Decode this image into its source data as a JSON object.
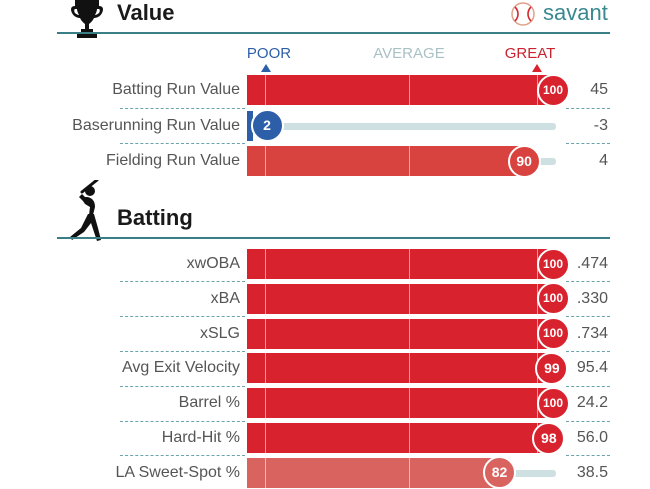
{
  "value_section": {
    "title": "Value",
    "brand": "savant",
    "scale": {
      "poor": "POOR",
      "average": "AVERAGE",
      "great": "GREAT"
    },
    "rows": [
      {
        "label": "Batting Run Value",
        "percentile": 100,
        "value": "45"
      },
      {
        "label": "Baserunning Run Value",
        "percentile": 2,
        "value": "-3"
      },
      {
        "label": "Fielding Run Value",
        "percentile": 90,
        "value": "4"
      }
    ]
  },
  "batting_section": {
    "title": "Batting",
    "rows": [
      {
        "label": "xwOBA",
        "percentile": 100,
        "value": ".474"
      },
      {
        "label": "xBA",
        "percentile": 100,
        "value": ".330"
      },
      {
        "label": "xSLG",
        "percentile": 100,
        "value": ".734"
      },
      {
        "label": "Avg Exit Velocity",
        "percentile": 99,
        "value": "95.4"
      },
      {
        "label": "Barrel %",
        "percentile": 100,
        "value": "24.2"
      },
      {
        "label": "Hard-Hit %",
        "percentile": 98,
        "value": "56.0"
      },
      {
        "label": "LA Sweet-Spot %",
        "percentile": 82,
        "value": "38.5"
      }
    ]
  },
  "colors": {
    "teal": "#3a7f88",
    "poor_blue": "#2c5fa8",
    "great_red": "#d8232f",
    "average_gray": "#a9c0c5",
    "track": "#cfe0e3"
  }
}
